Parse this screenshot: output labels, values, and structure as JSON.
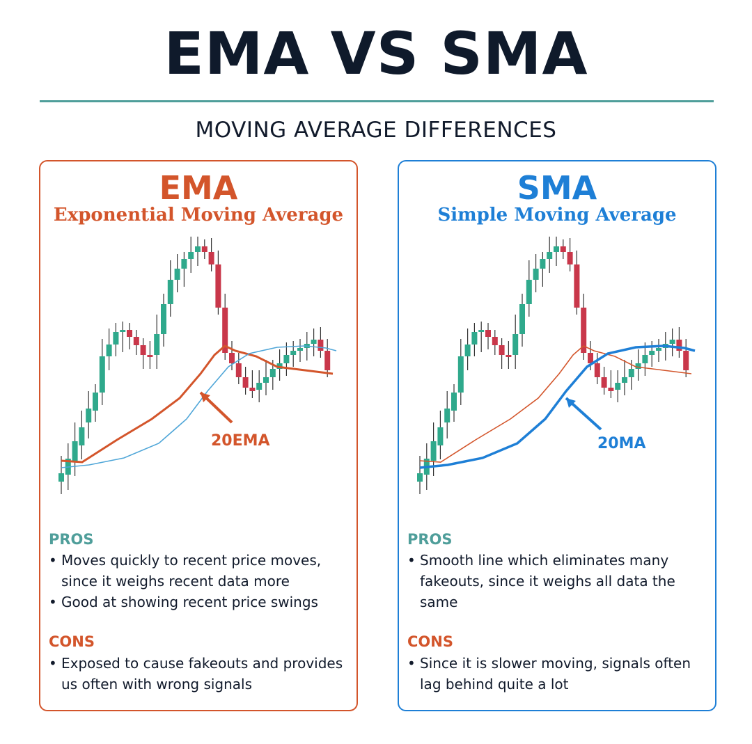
{
  "title": "EMA VS SMA",
  "subtitle": "MOVING AVERAGE DIFFERENCES",
  "colors": {
    "ema": "#d3552b",
    "sma": "#1e7fd6",
    "teal": "#4f9e9a",
    "bull_candle": "#2fa98c",
    "bear_candle": "#c9374a",
    "dark": "#111a2b"
  },
  "panels": [
    {
      "id": "ema",
      "heading": "EMA",
      "subheading": "Exponential Moving Average",
      "ma_label": "20EMA",
      "pros_label": "PROS",
      "pros": [
        "Moves quickly to recent price moves, since it weighs recent data more",
        "Good at showing recent price swings"
      ],
      "cons_label": "CONS",
      "cons": [
        "Exposed to cause fakeouts and provides us often with wrong signals"
      ]
    },
    {
      "id": "sma",
      "heading": "SMA",
      "subheading": "Simple Moving Average",
      "ma_label": "20MA",
      "pros_label": "PROS",
      "pros": [
        "Smooth line which eliminates many fakeouts, since it weighs all data the same"
      ],
      "cons_label": "CONS",
      "cons": [
        "Since it is slower moving, signals often lag behind quite a lot"
      ]
    }
  ]
}
